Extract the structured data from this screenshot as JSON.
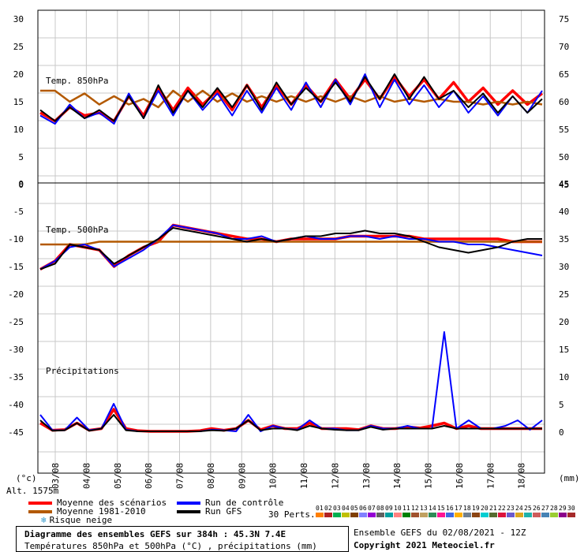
{
  "chart_data": {
    "type": "line",
    "xticks": [
      "03/08",
      "04/08",
      "05/08",
      "06/08",
      "07/08",
      "08/08",
      "09/08",
      "10/08",
      "11/08",
      "12/08",
      "13/08",
      "14/08",
      "15/08",
      "16/08",
      "17/08",
      "18/08"
    ],
    "panels": [
      {
        "label": "Temp. 850hPa",
        "left_ticks": [
          "30",
          "25",
          "20",
          "15",
          "10",
          "5",
          "0"
        ],
        "right_ticks": [
          "75",
          "70",
          "65",
          "60",
          "55",
          "50",
          "45"
        ],
        "ylim": [
          0,
          30
        ],
        "series": [
          {
            "name": "Moyenne des scénarios",
            "color": "#ff0000",
            "values": [
              13,
              11.5,
              14,
              12.5,
              13,
              11.5,
              16,
              12.5,
              17.5,
              13.5,
              17.5,
              14.5,
              17,
              13.5,
              18,
              14,
              18,
              14.5,
              18,
              15,
              19,
              15.5,
              19,
              15.5,
              19.5,
              16,
              19,
              15.5,
              18.5,
              15,
              17.5,
              14.5,
              17,
              14.5,
              16.5
            ]
          },
          {
            "name": "Moyenne 1981-2010",
            "color": "#b35900",
            "values": [
              17,
              17,
              15,
              16.5,
              14.5,
              16,
              14.5,
              15.5,
              14,
              17,
              15,
              17,
              15,
              16.5,
              15,
              16,
              15,
              16,
              15,
              16,
              15,
              16,
              15,
              16,
              15,
              15.5,
              15,
              15.5,
              15,
              15,
              14.5,
              15,
              14.5,
              15,
              14.5
            ]
          },
          {
            "name": "Run de contrôle",
            "color": "#0000ff",
            "values": [
              12.5,
              11,
              14.5,
              12,
              13,
              11,
              16.5,
              12,
              17,
              12.5,
              17,
              13.5,
              16.5,
              12.5,
              17,
              13,
              17.5,
              13.5,
              18.5,
              14,
              19,
              14.5,
              20,
              14,
              19,
              14.5,
              18,
              14,
              17,
              13,
              16,
              12.5,
              16,
              13,
              17
            ]
          },
          {
            "name": "Run GFS",
            "color": "#000000",
            "values": [
              13.5,
              11.5,
              14,
              12,
              13.5,
              11.5,
              16,
              12,
              18,
              13,
              17,
              14,
              17.5,
              14,
              18,
              13.5,
              18.5,
              14.5,
              17.5,
              15,
              18.5,
              15,
              19.5,
              15.5,
              20,
              15.5,
              19.5,
              15.5,
              17,
              14,
              16.5,
              13,
              16,
              13,
              15.5
            ]
          }
        ]
      },
      {
        "label": "Temp. 500hPa",
        "left_ticks": [
          "-5",
          "-10",
          "-15",
          "-20",
          "-25",
          "-30",
          "-35",
          "-40",
          "-45"
        ],
        "right_ticks": [
          "40",
          "35",
          "30",
          "25",
          "20",
          "15",
          "10",
          "5",
          "0"
        ],
        "ylim": [
          -45,
          -5
        ],
        "series": [
          {
            "name": "Moyenne des scénarios",
            "color": "#ff0000",
            "values": [
              -15.5,
              -14,
              -11,
              -11.5,
              -12,
              -15,
              -13,
              -11.5,
              -10.5,
              -7.5,
              -8,
              -8.5,
              -9,
              -9.5,
              -10,
              -10,
              -10.5,
              -10,
              -10,
              -10,
              -10,
              -9.5,
              -9.5,
              -9.5,
              -9.5,
              -9.5,
              -10,
              -10,
              -10,
              -10,
              -10,
              -10,
              -10.5,
              -10.5,
              -10.5
            ]
          },
          {
            "name": "Moyenne 1981-2010",
            "color": "#b35900",
            "values": [
              -11,
              -11,
              -11,
              -11,
              -10.5,
              -10.5,
              -10.5,
              -10.5,
              -10.5,
              -10.5,
              -10.5,
              -10.5,
              -10.5,
              -10.5,
              -10.5,
              -10.5,
              -10.5,
              -10.5,
              -10.5,
              -10.5,
              -10.5,
              -10.5,
              -10.5,
              -10.5,
              -10.5,
              -10.5,
              -10.5,
              -10.5,
              -10.5,
              -10.5,
              -10.5,
              -10.5,
              -10.5,
              -10.5,
              -10.5
            ]
          },
          {
            "name": "Run de contrôle",
            "color": "#0000ff",
            "values": [
              -15.5,
              -14,
              -11.5,
              -11,
              -12,
              -15,
              -13.5,
              -12,
              -10,
              -7.5,
              -8,
              -8.5,
              -9,
              -10,
              -10,
              -9.5,
              -10.5,
              -10,
              -9.5,
              -10,
              -10,
              -9.5,
              -9.5,
              -10,
              -9.5,
              -10,
              -10,
              -10.5,
              -10.5,
              -11,
              -11,
              -11.5,
              -12,
              -12.5,
              -13
            ]
          },
          {
            "name": "Run GFS",
            "color": "#000000",
            "values": [
              -15.5,
              -14.5,
              -11,
              -11.5,
              -12,
              -14.5,
              -13,
              -11.5,
              -10,
              -8,
              -8.5,
              -9,
              -9.5,
              -10,
              -10.5,
              -10,
              -10.5,
              -10,
              -9.5,
              -9.5,
              -9,
              -9,
              -8.5,
              -9,
              -9,
              -9.5,
              -10.5,
              -11.5,
              -12,
              -12.5,
              -12,
              -11.5,
              -10.5,
              -10,
              -10
            ]
          }
        ]
      },
      {
        "label": "Précipitations",
        "right_ticks": [
          "20",
          "15",
          "10",
          "5",
          "0"
        ],
        "ylim": [
          0,
          25
        ],
        "series": [
          {
            "name": "Moyenne des scénarios",
            "color": "#ff0000",
            "values": [
              1.5,
              0.2,
              0.3,
              1.5,
              0.2,
              0.5,
              4,
              0.5,
              0.1,
              0,
              0,
              0,
              0,
              0.1,
              0.5,
              0.2,
              0.5,
              2,
              0.3,
              1,
              0.5,
              0.5,
              1.5,
              0.5,
              0.5,
              0.5,
              0.3,
              1,
              0.5,
              0.5,
              0.8,
              0.6,
              1,
              1.5,
              0.5,
              1,
              0.5,
              0.5,
              0.5,
              0.5,
              0.5,
              0.5
            ]
          },
          {
            "name": "Run de contrôle",
            "color": "#0000ff",
            "values": [
              3,
              0.2,
              0.2,
              2.5,
              0.2,
              0.5,
              5,
              0.3,
              0,
              0,
              0,
              0,
              0,
              0,
              0.3,
              0.2,
              0,
              3,
              0,
              1,
              0.5,
              0.3,
              2,
              0.5,
              0.5,
              0.2,
              0.2,
              1,
              0.5,
              0.5,
              1,
              0.5,
              0.5,
              18,
              0.5,
              2,
              0.5,
              0.5,
              1,
              2,
              0.3,
              2
            ]
          },
          {
            "name": "Run GFS",
            "color": "#000000",
            "values": [
              2,
              0.1,
              0.2,
              1.5,
              0.1,
              0.5,
              3,
              0.2,
              0,
              0,
              0,
              0,
              0,
              0,
              0.2,
              0.1,
              0.5,
              2,
              0.2,
              0.5,
              0.5,
              0.2,
              1,
              0.5,
              0.3,
              0.2,
              0.2,
              0.8,
              0.3,
              0.5,
              0.5,
              0.5,
              0.5,
              1,
              0.5,
              0.5,
              0.5,
              0.5,
              0.5,
              0.5,
              0.5,
              0.5
            ]
          }
        ]
      }
    ],
    "left_unit": "(°c)",
    "right_unit": "(mm)",
    "altitude": "Alt. 1575m"
  },
  "legend": {
    "items": [
      {
        "label": "Moyenne des scénarios",
        "color": "#ff0000"
      },
      {
        "label": "Moyenne 1981-2010",
        "color": "#b35900"
      },
      {
        "label": "Run de contrôle",
        "color": "#0000ff"
      },
      {
        "label": "Run GFS",
        "color": "#000000"
      }
    ],
    "snow_label": "Risque neige",
    "perts_label": "30 Perts.",
    "pert_numbers": [
      "01",
      "02",
      "03",
      "04",
      "05",
      "06",
      "07",
      "08",
      "09",
      "10",
      "11",
      "12",
      "13",
      "14",
      "15",
      "16",
      "17",
      "18",
      "19",
      "20",
      "21",
      "22",
      "23",
      "24",
      "25",
      "26",
      "27",
      "28",
      "29",
      "30"
    ],
    "pert_colors": [
      "#ff7f00",
      "#b22222",
      "#00b050",
      "#c0c000",
      "#7f3f00",
      "#8080ff",
      "#9400d3",
      "#606060",
      "#00a0a0",
      "#ff8080",
      "#008000",
      "#a0522d",
      "#c0a060",
      "#2e8b57",
      "#ff1493",
      "#4169e1",
      "#ffb000",
      "#708090",
      "#8b4513",
      "#00ced1",
      "#556b2f",
      "#dc143c",
      "#6a5acd",
      "#daa520",
      "#20b2aa",
      "#cd5c5c",
      "#4682b4",
      "#9acd32",
      "#8b008b",
      "#a52a2a"
    ]
  },
  "footer": {
    "title": "Diagramme des ensembles GEFS sur 384h : 45.3N 7.4E",
    "subtitle": "Températures 850hPa et 500hPa (°C) , précipitations (mm)",
    "run_info": "Ensemble GEFS du 02/08/2021 - 12Z",
    "copyright": "Copyright 2021 Meteociel.fr"
  }
}
